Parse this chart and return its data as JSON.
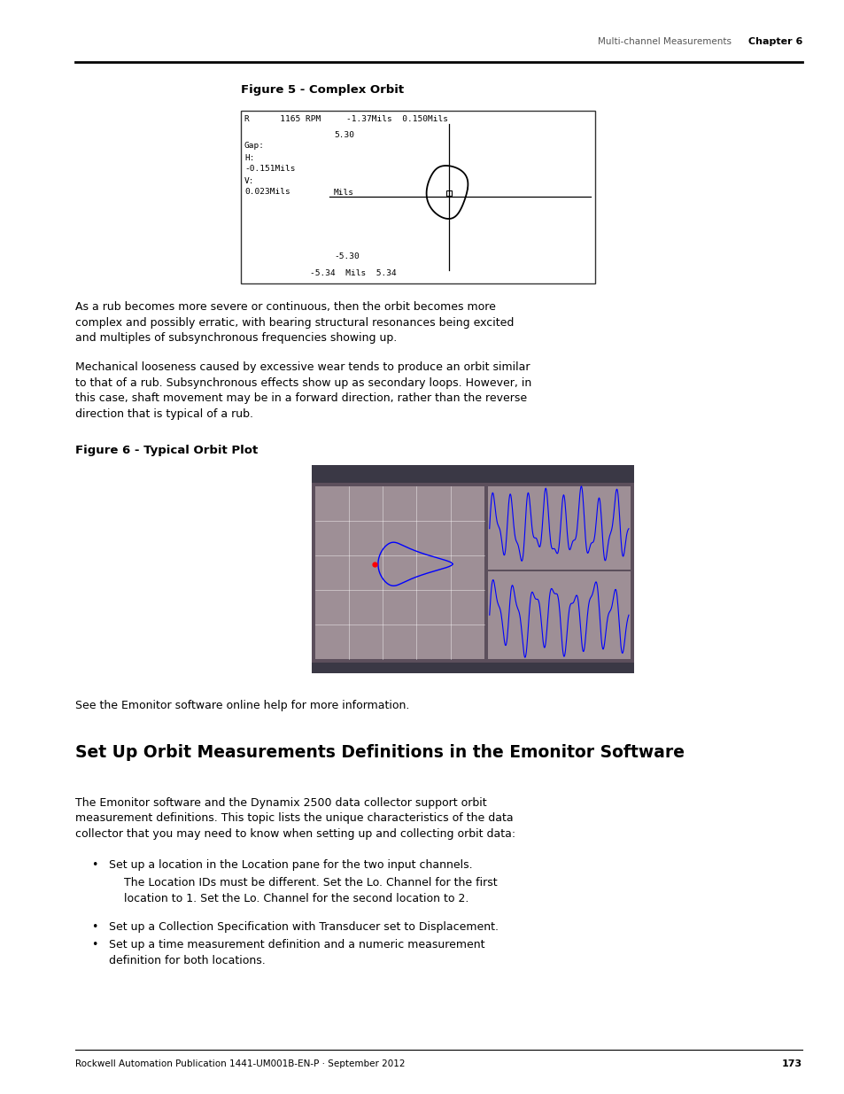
{
  "page_width": 9.54,
  "page_height": 12.35,
  "bg_color": "#ffffff",
  "top_label": "Multi-channel Measurements",
  "top_chapter": "Chapter 6",
  "bottom_text": "Rockwell Automation Publication 1441-UM001B-EN-P · September 2012",
  "bottom_page": "173",
  "figure5_title": "Figure 5 - Complex Orbit",
  "figure6_title": "Figure 6 - Typical Orbit Plot",
  "para1_lines": [
    "As a rub becomes more severe or continuous, then the orbit becomes more",
    "complex and possibly erratic, with bearing structural resonances being excited",
    "and multiples of subsynchronous frequencies showing up."
  ],
  "para2_lines": [
    "Mechanical looseness caused by excessive wear tends to produce an orbit similar",
    "to that of a rub. Subsynchronous effects show up as secondary loops. However, in",
    "this case, shaft movement may be in a forward direction, rather than the reverse",
    "direction that is typical of a rub."
  ],
  "see_text": "See the Emonitor software online help for more information.",
  "section_title": "Set Up Orbit Measurements Definitions in the Emonitor Software",
  "section_para_lines": [
    "The Emonitor software and the Dynamix 2500 data collector support orbit",
    "measurement definitions. This topic lists the unique characteristics of the data",
    "collector that you may need to know when setting up and collecting orbit data:"
  ],
  "bullet1_main": "Set up a location in the Location pane for the two input channels.",
  "bullet1_sub_lines": [
    "The Location IDs must be different. Set the Lo. Channel for the first",
    "location to 1. Set the Lo. Channel for the second location to 2."
  ],
  "bullet2": "Set up a Collection Specification with Transducer set to Displacement.",
  "bullet3_lines": [
    "Set up a time measurement definition and a numeric measurement",
    "definition for both locations."
  ],
  "text_color": "#000000",
  "header_color": "#000000"
}
